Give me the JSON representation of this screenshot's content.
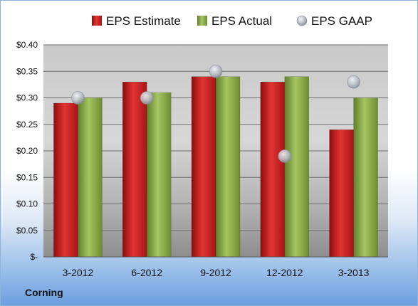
{
  "company": "Corning",
  "chart_data": {
    "type": "bar",
    "categories": [
      "3-2012",
      "6-2012",
      "9-2012",
      "12-2012",
      "3-2013"
    ],
    "series": [
      {
        "name": "EPS Estimate",
        "kind": "bar",
        "color": "#cc1f1f",
        "values": [
          0.29,
          0.33,
          0.34,
          0.33,
          0.24
        ]
      },
      {
        "name": "EPS Actual",
        "kind": "bar",
        "color": "#8fb04a",
        "values": [
          0.3,
          0.31,
          0.34,
          0.34,
          0.3
        ]
      },
      {
        "name": "EPS GAAP",
        "kind": "scatter",
        "color": "#b8bcc4",
        "values": [
          0.3,
          0.3,
          0.35,
          0.19,
          0.33
        ]
      }
    ],
    "yticks": [
      "$-",
      "$0.05",
      "$0.10",
      "$0.15",
      "$0.20",
      "$0.25",
      "$0.30",
      "$0.35",
      "$0.40"
    ],
    "ylim": [
      0,
      0.4
    ],
    "grid": true,
    "legend": "top"
  }
}
